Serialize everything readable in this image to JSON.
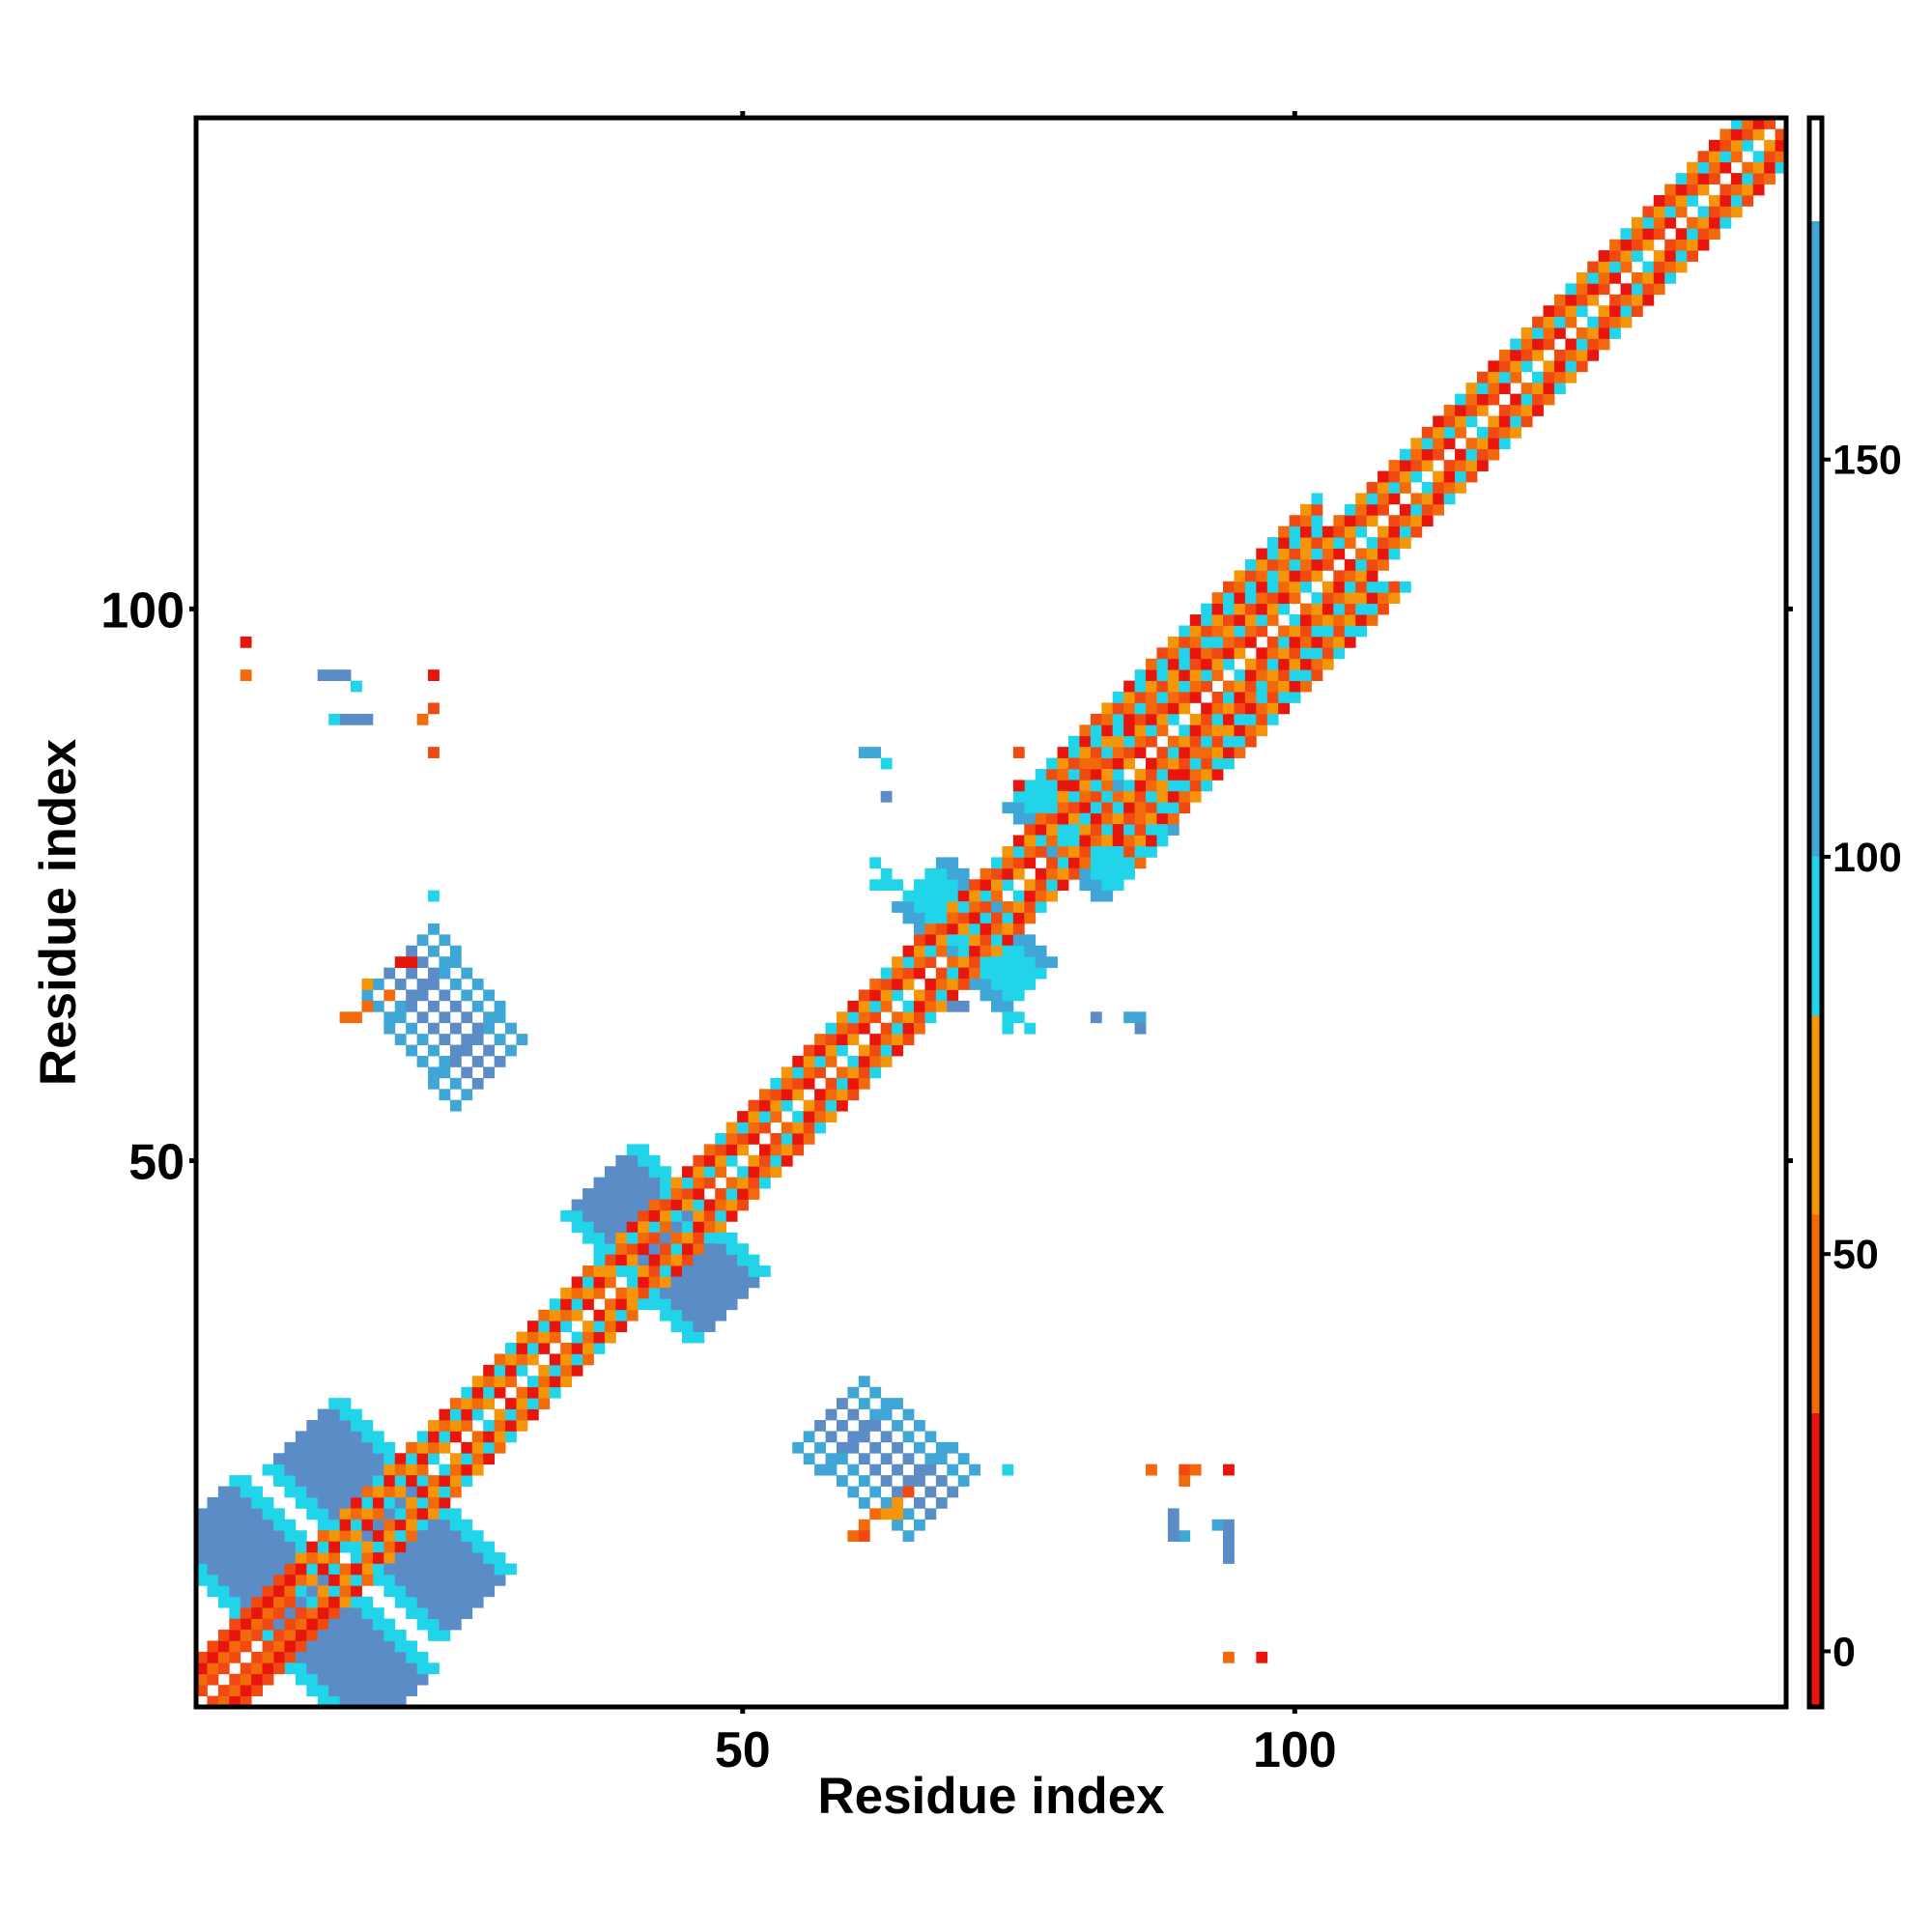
{
  "chart_data": {
    "type": "heatmap",
    "title": "",
    "xlabel": "Residue index",
    "ylabel": "Residue index",
    "n_residues": 144,
    "xlim": [
      0.5,
      144.5
    ],
    "ylim": [
      0.5,
      144.5
    ],
    "x_ticks": [
      50,
      100
    ],
    "y_ticks": [
      50,
      100
    ],
    "grid": false,
    "colorbar": {
      "ticks": [
        0,
        50,
        100,
        150
      ],
      "range": [
        -7,
        193
      ],
      "bands": [
        {
          "from": -7,
          "to": 30,
          "color": "#e8150c"
        },
        {
          "from": 30,
          "to": 55,
          "color": "#f26a0c"
        },
        {
          "from": 55,
          "to": 80,
          "color": "#f5950a"
        },
        {
          "from": 80,
          "to": 100,
          "color": "#21d4ea"
        },
        {
          "from": 100,
          "to": 180,
          "color": "#3fa6d6"
        },
        {
          "from": 180,
          "to": 193,
          "color": "#ffffff"
        }
      ]
    },
    "palette": {
      "red": "#e8150c",
      "red_orange": "#f04a12",
      "orange": "#f26a0c",
      "light_orange": "#f5950a",
      "cyan": "#21d4ea",
      "steel_blue": "#5b8cc6",
      "sky_blue": "#3fa6d6"
    },
    "diagonal_segments": [
      {
        "from": 1,
        "to": 10,
        "pattern": [
          "red",
          "red_orange",
          "orange"
        ]
      },
      {
        "from": 10,
        "to": 38,
        "pattern": [
          "orange",
          "red",
          "light_orange",
          "cyan"
        ]
      },
      {
        "from": 38,
        "to": 100,
        "pattern": [
          "orange",
          "light_orange",
          "red_orange",
          "cyan",
          "red"
        ]
      },
      {
        "from": 100,
        "to": 144,
        "pattern": [
          "red_orange",
          "orange",
          "light_orange",
          "red",
          "cyan"
        ]
      }
    ],
    "wide_band": {
      "from": 78,
      "to": 102,
      "depth": 8,
      "pattern": [
        "cyan",
        "orange",
        "red_orange",
        "light_orange",
        "cyan",
        "red"
      ]
    },
    "anti_diagonal_blocks": [
      {
        "from": [
          1,
          18
        ],
        "to": [
          18,
          1
        ],
        "width": 3,
        "color": "steel_blue",
        "edge": "cyan"
      },
      {
        "from": [
          10,
          25
        ],
        "to": [
          25,
          10
        ],
        "width": 3,
        "color": "steel_blue",
        "edge": "cyan"
      },
      {
        "from": [
          37,
          48
        ],
        "to": [
          48,
          37
        ],
        "width": 3,
        "color": "steel_blue",
        "edge": "cyan"
      },
      {
        "from": [
          66,
          75
        ],
        "to": [
          75,
          66
        ],
        "width": 2,
        "color": "cyan",
        "edge": "sky_blue"
      },
      {
        "from": [
          77,
          85
        ],
        "to": [
          85,
          77
        ],
        "width": 3,
        "color": "cyan",
        "edge": "sky_blue"
      }
    ],
    "off_diagonal_strands": [
      {
        "from": [
          19,
          68
        ],
        "to": [
          27,
          58
        ],
        "width": 3,
        "color": "steel_blue",
        "edge": "sky_blue"
      },
      {
        "from": [
          58,
          27
        ],
        "to": [
          68,
          19
        ],
        "width": 3,
        "color": "steel_blue",
        "edge": "sky_blue"
      }
    ],
    "scattered_contacts": [
      {
        "x": 5,
        "y": 97,
        "color": "red"
      },
      {
        "x": 5,
        "y": 94,
        "color": "orange"
      },
      {
        "x": 12,
        "y": 94,
        "color": "steel_blue"
      },
      {
        "x": 13,
        "y": 94,
        "color": "steel_blue"
      },
      {
        "x": 14,
        "y": 94,
        "color": "steel_blue"
      },
      {
        "x": 15,
        "y": 93,
        "color": "cyan"
      },
      {
        "x": 14,
        "y": 90,
        "color": "steel_blue"
      },
      {
        "x": 15,
        "y": 90,
        "color": "steel_blue"
      },
      {
        "x": 16,
        "y": 90,
        "color": "steel_blue"
      },
      {
        "x": 13,
        "y": 90,
        "color": "cyan"
      },
      {
        "x": 22,
        "y": 94,
        "color": "red"
      },
      {
        "x": 21,
        "y": 90,
        "color": "orange"
      },
      {
        "x": 22,
        "y": 91,
        "color": "red_orange"
      },
      {
        "x": 22,
        "y": 87,
        "color": "red_orange"
      },
      {
        "x": 22,
        "y": 74,
        "color": "cyan"
      },
      {
        "x": 19,
        "y": 68,
        "color": "red"
      },
      {
        "x": 20,
        "y": 68,
        "color": "red"
      },
      {
        "x": 16,
        "y": 66,
        "color": "light_orange"
      },
      {
        "x": 18,
        "y": 65,
        "color": "orange"
      },
      {
        "x": 14,
        "y": 63,
        "color": "orange"
      },
      {
        "x": 15,
        "y": 63,
        "color": "orange"
      },
      {
        "x": 16,
        "y": 64,
        "color": "orange"
      },
      {
        "x": 61,
        "y": 87,
        "color": "sky_blue"
      },
      {
        "x": 62,
        "y": 87,
        "color": "sky_blue"
      },
      {
        "x": 63,
        "y": 86,
        "color": "cyan"
      },
      {
        "x": 63,
        "y": 83,
        "color": "steel_blue"
      },
      {
        "x": 62,
        "y": 77,
        "color": "cyan"
      },
      {
        "x": 63,
        "y": 76,
        "color": "cyan"
      },
      {
        "x": 63,
        "y": 75,
        "color": "cyan"
      },
      {
        "x": 64,
        "y": 75,
        "color": "cyan"
      },
      {
        "x": 62,
        "y": 75,
        "color": "cyan"
      },
      {
        "x": 75,
        "y": 87,
        "color": "red_orange"
      },
      {
        "x": 75,
        "y": 84,
        "color": "red"
      },
      {
        "x": 86,
        "y": 77,
        "color": "orange"
      },
      {
        "x": 69,
        "y": 64,
        "color": "steel_blue"
      },
      {
        "x": 70,
        "y": 64,
        "color": "steel_blue"
      },
      {
        "x": 74,
        "y": 63,
        "color": "cyan"
      },
      {
        "x": 75,
        "y": 63,
        "color": "cyan"
      },
      {
        "x": 76,
        "y": 62,
        "color": "cyan"
      },
      {
        "x": 74,
        "y": 62,
        "color": "cyan"
      },
      {
        "x": 82,
        "y": 63,
        "color": "steel_blue"
      },
      {
        "x": 85,
        "y": 63,
        "color": "sky_blue"
      },
      {
        "x": 86,
        "y": 63,
        "color": "sky_blue"
      },
      {
        "x": 86,
        "y": 62,
        "color": "steel_blue"
      },
      {
        "x": 74,
        "y": 22,
        "color": "cyan"
      },
      {
        "x": 87,
        "y": 22,
        "color": "orange"
      },
      {
        "x": 90,
        "y": 22,
        "color": "red_orange"
      },
      {
        "x": 91,
        "y": 22,
        "color": "orange"
      },
      {
        "x": 94,
        "y": 22,
        "color": "red"
      },
      {
        "x": 90,
        "y": 21,
        "color": "orange"
      },
      {
        "x": 65,
        "y": 20,
        "color": "red_orange"
      },
      {
        "x": 64,
        "y": 19,
        "color": "light_orange"
      },
      {
        "x": 62,
        "y": 18,
        "color": "orange"
      },
      {
        "x": 63,
        "y": 18,
        "color": "light_orange"
      },
      {
        "x": 64,
        "y": 18,
        "color": "light_orange"
      },
      {
        "x": 61,
        "y": 17,
        "color": "orange"
      },
      {
        "x": 60,
        "y": 16,
        "color": "orange"
      },
      {
        "x": 61,
        "y": 16,
        "color": "red_orange"
      },
      {
        "x": 89,
        "y": 18,
        "color": "steel_blue"
      },
      {
        "x": 89,
        "y": 17,
        "color": "steel_blue"
      },
      {
        "x": 90,
        "y": 16,
        "color": "sky_blue"
      },
      {
        "x": 89,
        "y": 16,
        "color": "steel_blue"
      },
      {
        "x": 93,
        "y": 17,
        "color": "sky_blue"
      },
      {
        "x": 94,
        "y": 17,
        "color": "steel_blue"
      },
      {
        "x": 94,
        "y": 16,
        "color": "steel_blue"
      },
      {
        "x": 94,
        "y": 15,
        "color": "steel_blue"
      },
      {
        "x": 94,
        "y": 14,
        "color": "steel_blue"
      },
      {
        "x": 94,
        "y": 5,
        "color": "orange"
      },
      {
        "x": 97,
        "y": 5,
        "color": "red"
      }
    ]
  }
}
